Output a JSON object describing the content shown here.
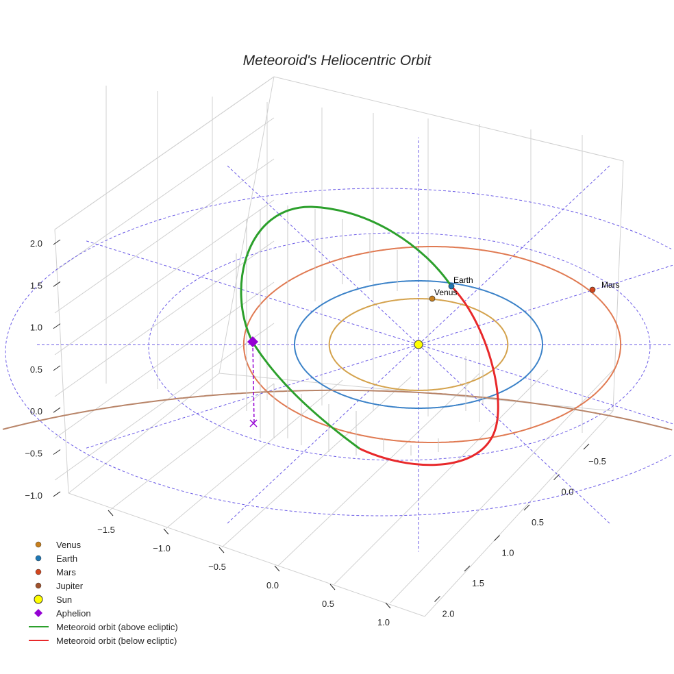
{
  "chart_data": {
    "type": "3d-line",
    "title": "Meteoroid's Heliocentric Orbit",
    "axes": {
      "x": {
        "ticks": [
          "−1.5",
          "−1.0",
          "−0.5",
          "0.0",
          "0.5",
          "1.0"
        ]
      },
      "y": {
        "ticks": [
          "−0.5",
          "0.0",
          "0.5",
          "1.0",
          "1.5",
          "2.0"
        ]
      },
      "z": {
        "ticks": [
          "2.0",
          "1.5",
          "1.0",
          "0.5",
          "0.0",
          "−0.5",
          "−1.0"
        ]
      }
    },
    "planets": [
      {
        "name": "Venus",
        "orbit_radius_au": 0.72,
        "color": "#d4a24c",
        "marker": "#c8801e",
        "label": "Venus"
      },
      {
        "name": "Earth",
        "orbit_radius_au": 1.0,
        "color": "#3b82c8",
        "marker": "#1f77b4",
        "label": "Earth"
      },
      {
        "name": "Mars",
        "orbit_radius_au": 1.52,
        "color": "#e07a52",
        "marker": "#d2461e",
        "label": "Mars"
      },
      {
        "name": "Jupiter",
        "orbit_radius_au": 5.2,
        "color": "#b88468",
        "marker": "#a0522d"
      }
    ],
    "reference_circles_au": [
      2,
      3
    ],
    "legend": {
      "placement": "lower-left",
      "entries": [
        {
          "label": "Venus",
          "kind": "dot",
          "color": "#c8801e"
        },
        {
          "label": "Earth",
          "kind": "dot",
          "color": "#1f77b4"
        },
        {
          "label": "Mars",
          "kind": "dot",
          "color": "#d2461e"
        },
        {
          "label": "Jupiter",
          "kind": "dot",
          "color": "#a0522d"
        },
        {
          "label": "Sun",
          "kind": "sun",
          "color": "#ffff00"
        },
        {
          "label": "Aphelion",
          "kind": "diamond",
          "color": "#9400d3"
        },
        {
          "label": "Meteoroid orbit (above ecliptic)",
          "kind": "line",
          "color": "#2ca02c"
        },
        {
          "label": "Meteoroid orbit (below ecliptic)",
          "kind": "line",
          "color": "#e8282a"
        }
      ]
    }
  }
}
